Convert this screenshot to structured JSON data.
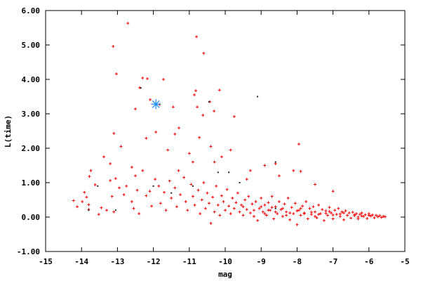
{
  "chart_data": {
    "type": "scatter",
    "title": "",
    "xlabel": "mag",
    "ylabel": "L(time)",
    "xlim": [
      -15,
      -5
    ],
    "ylim": [
      -1,
      6
    ],
    "grid": false,
    "legend": "none",
    "x_ticks": [
      "-15",
      "-14",
      "-13",
      "-12",
      "-11",
      "-10",
      "-9",
      "-8",
      "-7",
      "-6",
      "-5"
    ],
    "y_ticks": [
      "-1.00",
      "0.00",
      "1.00",
      "2.00",
      "3.00",
      "4.00",
      "5.00",
      "6.00"
    ],
    "series": [
      {
        "color": "#ff0000",
        "marker": "plus",
        "points": [
          [
            -12.71,
            5.63
          ],
          [
            -13.12,
            4.96
          ],
          [
            -13.03,
            4.16
          ],
          [
            -12.3,
            4.04
          ],
          [
            -12.17,
            4.02
          ],
          [
            -11.72,
            4.0
          ],
          [
            -12.38,
            3.76
          ],
          [
            -12.09,
            3.41
          ],
          [
            -11.83,
            3.27
          ],
          [
            -12.5,
            3.14
          ],
          [
            -11.45,
            3.2
          ],
          [
            -10.82,
            3.67
          ],
          [
            -10.86,
            3.55
          ],
          [
            -10.8,
            5.24
          ],
          [
            -10.6,
            4.76
          ],
          [
            -10.78,
            3.2
          ],
          [
            -10.62,
            2.96
          ],
          [
            -10.43,
            3.35
          ],
          [
            -10.16,
            3.69
          ],
          [
            -10.31,
            3.08
          ],
          [
            -9.75,
            2.92
          ],
          [
            -7.95,
            2.12
          ],
          [
            -13.1,
            2.43
          ],
          [
            -11.93,
            2.47
          ],
          [
            -11.29,
            2.59
          ],
          [
            -11.4,
            2.41
          ],
          [
            -10.72,
            2.31
          ],
          [
            -12.2,
            2.29
          ],
          [
            -13.2,
            1.55
          ],
          [
            -12.9,
            2.05
          ],
          [
            -11.6,
            1.95
          ],
          [
            -11.0,
            1.85
          ],
          [
            -10.4,
            2.05
          ],
          [
            -10.9,
            1.6
          ],
          [
            -10.1,
            1.75
          ],
          [
            -9.85,
            1.95
          ],
          [
            -11.3,
            1.35
          ],
          [
            -10.3,
            1.6
          ],
          [
            -12.6,
            1.45
          ],
          [
            -14.22,
            0.48
          ],
          [
            -14.12,
            0.3
          ],
          [
            -13.98,
            0.45
          ],
          [
            -13.92,
            0.72
          ],
          [
            -13.86,
            0.58
          ],
          [
            -13.8,
            0.36
          ],
          [
            -13.8,
            0.22
          ],
          [
            -13.78,
            1.18
          ],
          [
            -13.74,
            1.35
          ],
          [
            -13.62,
            0.94
          ],
          [
            -13.52,
            0.08
          ],
          [
            -13.45,
            0.27
          ],
          [
            -13.38,
            1.75
          ],
          [
            -13.3,
            0.2
          ],
          [
            -13.2,
            1.06
          ],
          [
            -13.15,
            0.6
          ],
          [
            -13.1,
            0.15
          ],
          [
            -13.05,
            1.12
          ],
          [
            -12.95,
            0.85
          ],
          [
            -12.82,
            0.65
          ],
          [
            -12.75,
            0.9
          ],
          [
            -12.6,
            0.45
          ],
          [
            -12.55,
            0.25
          ],
          [
            -12.5,
            1.2
          ],
          [
            -12.45,
            0.78
          ],
          [
            -12.4,
            0.1
          ],
          [
            -12.3,
            1.35
          ],
          [
            -12.2,
            0.62
          ],
          [
            -12.1,
            0.75
          ],
          [
            -12.05,
            0.32
          ],
          [
            -11.95,
            1.1
          ],
          [
            -11.85,
            0.9
          ],
          [
            -11.8,
            0.4
          ],
          [
            -11.7,
            0.72
          ],
          [
            -11.65,
            0.2
          ],
          [
            -11.55,
            1.05
          ],
          [
            -11.5,
            0.55
          ],
          [
            -11.4,
            0.85
          ],
          [
            -11.35,
            0.3
          ],
          [
            -11.25,
            0.65
          ],
          [
            -11.15,
            1.15
          ],
          [
            -11.1,
            0.45
          ],
          [
            -11.05,
            0.2
          ],
          [
            -10.95,
            0.95
          ],
          [
            -10.9,
            0.6
          ],
          [
            -10.85,
            0.35
          ],
          [
            -10.75,
            0.78
          ],
          [
            -10.7,
            0.1
          ],
          [
            -10.65,
            0.5
          ],
          [
            -10.6,
            1.0
          ],
          [
            -10.55,
            0.25
          ],
          [
            -10.5,
            0.7
          ],
          [
            -10.45,
            0.4
          ],
          [
            -10.4,
            -0.18
          ],
          [
            -10.35,
            0.58
          ],
          [
            -10.3,
            0.15
          ],
          [
            -10.25,
            0.9
          ],
          [
            -10.2,
            0.35
          ],
          [
            -10.15,
            0.05
          ],
          [
            -10.1,
            0.62
          ],
          [
            -10.05,
            0.45
          ],
          [
            -10.0,
            0.2
          ],
          [
            -9.95,
            0.8
          ],
          [
            -9.9,
            0.32
          ],
          [
            -9.85,
            0.1
          ],
          [
            -9.8,
            0.55
          ],
          [
            -9.75,
            0.25
          ],
          [
            -9.7,
            0.42
          ],
          [
            -9.65,
            0.7
          ],
          [
            -9.6,
            0.15
          ],
          [
            -9.55,
            0.35
          ],
          [
            -9.5,
            0.05
          ],
          [
            -9.45,
            0.5
          ],
          [
            -9.4,
            0.22
          ],
          [
            -9.35,
            0.6
          ],
          [
            -9.3,
            0.12
          ],
          [
            -9.25,
            0.38
          ],
          [
            -9.2,
            0.02
          ],
          [
            -9.15,
            0.45
          ],
          [
            -9.1,
            -0.1
          ],
          [
            -9.05,
            0.25
          ],
          [
            -9.0,
            0.55
          ],
          [
            -8.95,
            0.15
          ],
          [
            -8.9,
            0.35
          ],
          [
            -8.85,
            0.05
          ],
          [
            -8.8,
            0.42
          ],
          [
            -8.75,
            0.2
          ],
          [
            -8.7,
            0.6
          ],
          [
            -8.65,
            -0.05
          ],
          [
            -8.6,
            0.3
          ],
          [
            -8.55,
            0.1
          ],
          [
            -8.5,
            0.45
          ],
          [
            -8.45,
            0.22
          ],
          [
            -8.4,
            0.02
          ],
          [
            -8.35,
            0.38
          ],
          [
            -8.3,
            0.15
          ],
          [
            -8.25,
            0.55
          ],
          [
            -8.2,
            -0.08
          ],
          [
            -8.15,
            0.28
          ],
          [
            -8.1,
            0.1
          ],
          [
            -8.05,
            0.4
          ],
          [
            -8.0,
            -0.22
          ],
          [
            -7.95,
            0.2
          ],
          [
            -7.9,
            0.05
          ],
          [
            -7.85,
            0.32
          ],
          [
            -7.8,
            0.12
          ],
          [
            -7.75,
            0.45
          ],
          [
            -7.7,
            -0.05
          ],
          [
            -7.65,
            0.25
          ],
          [
            -7.6,
            0.08
          ],
          [
            -7.55,
            0.3
          ],
          [
            -7.5,
            0.15
          ],
          [
            -7.45,
            -0.02
          ],
          [
            -7.4,
            0.35
          ],
          [
            -7.35,
            0.1
          ],
          [
            -7.3,
            0.22
          ],
          [
            -7.25,
            -0.1
          ],
          [
            -7.2,
            0.18
          ],
          [
            -7.15,
            0.05
          ],
          [
            -7.1,
            0.28
          ],
          [
            -7.05,
            0.12
          ],
          [
            -7.0,
            -0.05
          ],
          [
            -6.95,
            0.2
          ],
          [
            -6.9,
            0.08
          ],
          [
            -6.85,
            0.25
          ],
          [
            -6.8,
            0.02
          ],
          [
            -6.75,
            0.15
          ],
          [
            -6.7,
            -0.08
          ],
          [
            -6.65,
            0.18
          ],
          [
            -6.6,
            0.05
          ],
          [
            -6.55,
            0.12
          ],
          [
            -6.5,
            -0.03
          ],
          [
            -6.45,
            0.14
          ],
          [
            -6.4,
            0.04
          ],
          [
            -6.35,
            0.1
          ],
          [
            -6.3,
            -0.05
          ],
          [
            -6.25,
            0.08
          ],
          [
            -6.2,
            0.12
          ],
          [
            -6.15,
            0.02
          ],
          [
            -6.1,
            0.07
          ],
          [
            -6.05,
            -0.04
          ],
          [
            -6.0,
            0.1
          ],
          [
            -5.95,
            0.03
          ],
          [
            -5.9,
            0.06
          ],
          [
            -5.85,
            -0.02
          ],
          [
            -5.8,
            0.05
          ],
          [
            -5.75,
            0.01
          ],
          [
            -5.7,
            0.04
          ],
          [
            -5.65,
            -0.01
          ],
          [
            -5.6,
            0.02
          ],
          [
            -5.55,
            0.01
          ],
          [
            -9.0,
            0.3
          ],
          [
            -8.8,
            0.2
          ],
          [
            -8.6,
            0.15
          ],
          [
            -8.4,
            0.25
          ],
          [
            -8.2,
            0.12
          ],
          [
            -8.0,
            0.18
          ],
          [
            -7.8,
            0.1
          ],
          [
            -7.6,
            0.14
          ],
          [
            -7.4,
            0.08
          ],
          [
            -7.2,
            0.11
          ],
          [
            -7.0,
            0.06
          ],
          [
            -6.8,
            0.09
          ],
          [
            -6.6,
            0.05
          ],
          [
            -6.4,
            0.07
          ],
          [
            -6.2,
            0.03
          ],
          [
            -6.0,
            0.05
          ],
          [
            -9.5,
            0.3
          ],
          [
            -9.2,
            0.2
          ],
          [
            -8.9,
            0.1
          ],
          [
            -8.7,
            0.28
          ],
          [
            -8.3,
            0.05
          ],
          [
            -7.9,
            0.25
          ],
          [
            -7.5,
            0.02
          ],
          [
            -7.1,
            0.16
          ],
          [
            -6.7,
            0.12
          ],
          [
            -6.3,
            0.0
          ],
          [
            -8.6,
            1.55
          ],
          [
            -8.1,
            1.35
          ],
          [
            -7.9,
            1.33
          ],
          [
            -7.5,
            0.95
          ],
          [
            -7.0,
            0.75
          ],
          [
            -8.9,
            1.5
          ],
          [
            -8.5,
            1.2
          ],
          [
            -9.3,
            1.35
          ],
          [
            -9.4,
            1.1
          ]
        ]
      },
      {
        "color": "#222222",
        "marker": "dot",
        "points": [
          [
            -9.1,
            3.5
          ],
          [
            -10.45,
            3.35
          ],
          [
            -8.6,
            1.6
          ],
          [
            -12.35,
            3.75
          ],
          [
            -10.9,
            0.9
          ],
          [
            -13.55,
            0.9
          ],
          [
            -13.05,
            0.2
          ],
          [
            -11.5,
            0.7
          ],
          [
            -9.9,
            1.3
          ],
          [
            -8.6,
            0.25
          ],
          [
            -10.2,
            1.3
          ],
          [
            -12.0,
            0.9
          ],
          [
            -9.6,
            1.0
          ],
          [
            -13.8,
            0.2
          ]
        ]
      },
      {
        "color": "#1e90ff",
        "marker": "star",
        "points": [
          [
            -11.93,
            3.28
          ]
        ]
      }
    ]
  }
}
